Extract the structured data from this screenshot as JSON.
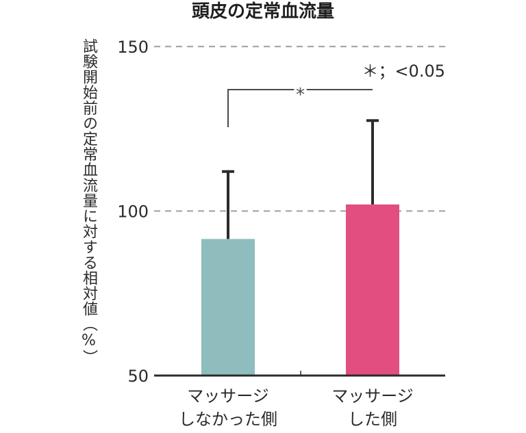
{
  "chart_data": {
    "type": "bar",
    "title": "頭皮の定常血流量",
    "ylabel": "試験開始前の定常血流量に対する相対値（%）",
    "xlabel": "",
    "ylim": [
      50,
      150
    ],
    "yticks": [
      50,
      100,
      150
    ],
    "gridlines_at": [
      100,
      150
    ],
    "categories": [
      "マッサージ\nしなかった側",
      "マッサージ\nした側"
    ],
    "series": [
      {
        "values": [
          91.5,
          102
        ],
        "error_upper": [
          112,
          127.5
        ],
        "colors": [
          "#8fbcbc",
          "#e24e7f"
        ]
      }
    ],
    "significance": {
      "symbol": "*",
      "legend": "＊；<0.05"
    }
  }
}
